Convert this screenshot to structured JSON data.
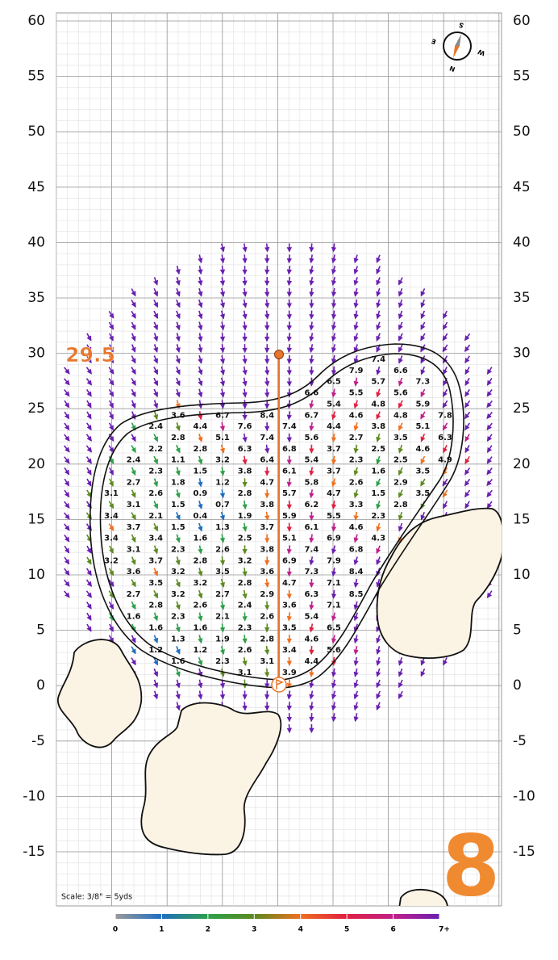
{
  "yticks": [
    60,
    55,
    50,
    45,
    40,
    35,
    30,
    25,
    20,
    15,
    10,
    5,
    0,
    -5,
    -10,
    -15
  ],
  "distance_label": "29.5",
  "hole_number": "8",
  "scale_note": "Scale: 3/8\" = 5yds",
  "compass": {
    "north": "N",
    "south": "S",
    "east": "E",
    "west": "W"
  },
  "legend": {
    "labels": [
      0,
      1,
      2,
      3,
      4,
      5,
      6,
      {
        "value": 7,
        "label": "7+"
      }
    ]
  },
  "slope_rows": [
    [
      null,
      null,
      null,
      null,
      null,
      null,
      7.4,
      null
    ],
    [
      null,
      null,
      null,
      null,
      null,
      7.9,
      6.6,
      null
    ],
    [
      null,
      null,
      null,
      null,
      null,
      6.5,
      5.7,
      7.3
    ],
    [
      null,
      null,
      null,
      null,
      6.6,
      5.5,
      5.6,
      null
    ],
    [
      null,
      null,
      null,
      null,
      null,
      5.4,
      4.8,
      5.9
    ],
    [
      null,
      3.6,
      6.7,
      8.4,
      6.7,
      4.6,
      4.8,
      7.8
    ],
    [
      null,
      2.4,
      4.4,
      7.6,
      7.4,
      4.4,
      3.8,
      5.1
    ],
    [
      null,
      2.8,
      5.1,
      7.4,
      5.6,
      2.7,
      3.5,
      6.3
    ],
    [
      null,
      2.2,
      2.8,
      6.3,
      6.8,
      3.7,
      2.5,
      4.6
    ],
    [
      2.4,
      1.1,
      3.2,
      6.4,
      5.4,
      2.3,
      2.5,
      4.9
    ],
    [
      null,
      2.3,
      1.5,
      3.8,
      6.1,
      3.7,
      1.6,
      3.5
    ],
    [
      2.7,
      1.8,
      1.2,
      4.7,
      5.8,
      2.6,
      2.9,
      null
    ],
    [
      3.1,
      2.6,
      0.9,
      2.8,
      5.7,
      4.7,
      1.5,
      3.5
    ],
    [
      3.1,
      1.5,
      0.7,
      3.8,
      6.2,
      3.3,
      2.8,
      null
    ],
    [
      3.4,
      2.1,
      0.4,
      1.9,
      5.9,
      5.5,
      2.3,
      null
    ],
    [
      3.7,
      1.5,
      1.3,
      3.7,
      6.1,
      4.6,
      null,
      null
    ],
    [
      3.4,
      3.4,
      1.6,
      2.5,
      5.1,
      6.9,
      4.3,
      null
    ],
    [
      3.1,
      2.3,
      2.6,
      3.8,
      7.4,
      6.8,
      null,
      null
    ],
    [
      3.2,
      3.7,
      2.8,
      3.2,
      6.9,
      7.9,
      null,
      null
    ],
    [
      3.6,
      3.2,
      3.5,
      3.6,
      7.3,
      8.4,
      null,
      null
    ],
    [
      null,
      3.5,
      3.2,
      2.8,
      4.7,
      7.1,
      null,
      null
    ],
    [
      2.7,
      3.2,
      2.7,
      2.9,
      6.3,
      8.5,
      null,
      null
    ],
    [
      null,
      2.8,
      2.6,
      2.4,
      3.6,
      7.1,
      null,
      null
    ],
    [
      1.6,
      2.3,
      2.1,
      2.6,
      5.4,
      null,
      null,
      null
    ],
    [
      null,
      1.6,
      1.6,
      2.3,
      3.5,
      6.5,
      null,
      null
    ],
    [
      null,
      1.3,
      1.9,
      2.8,
      4.6,
      null,
      null,
      null
    ],
    [
      null,
      1.2,
      1.2,
      2.6,
      3.4,
      5.6,
      null,
      null
    ],
    [
      null,
      1.6,
      2.3,
      3.1,
      4.4,
      null,
      null,
      null
    ],
    [
      null,
      null,
      null,
      3.1,
      3.9,
      null,
      null,
      null
    ]
  ]
}
